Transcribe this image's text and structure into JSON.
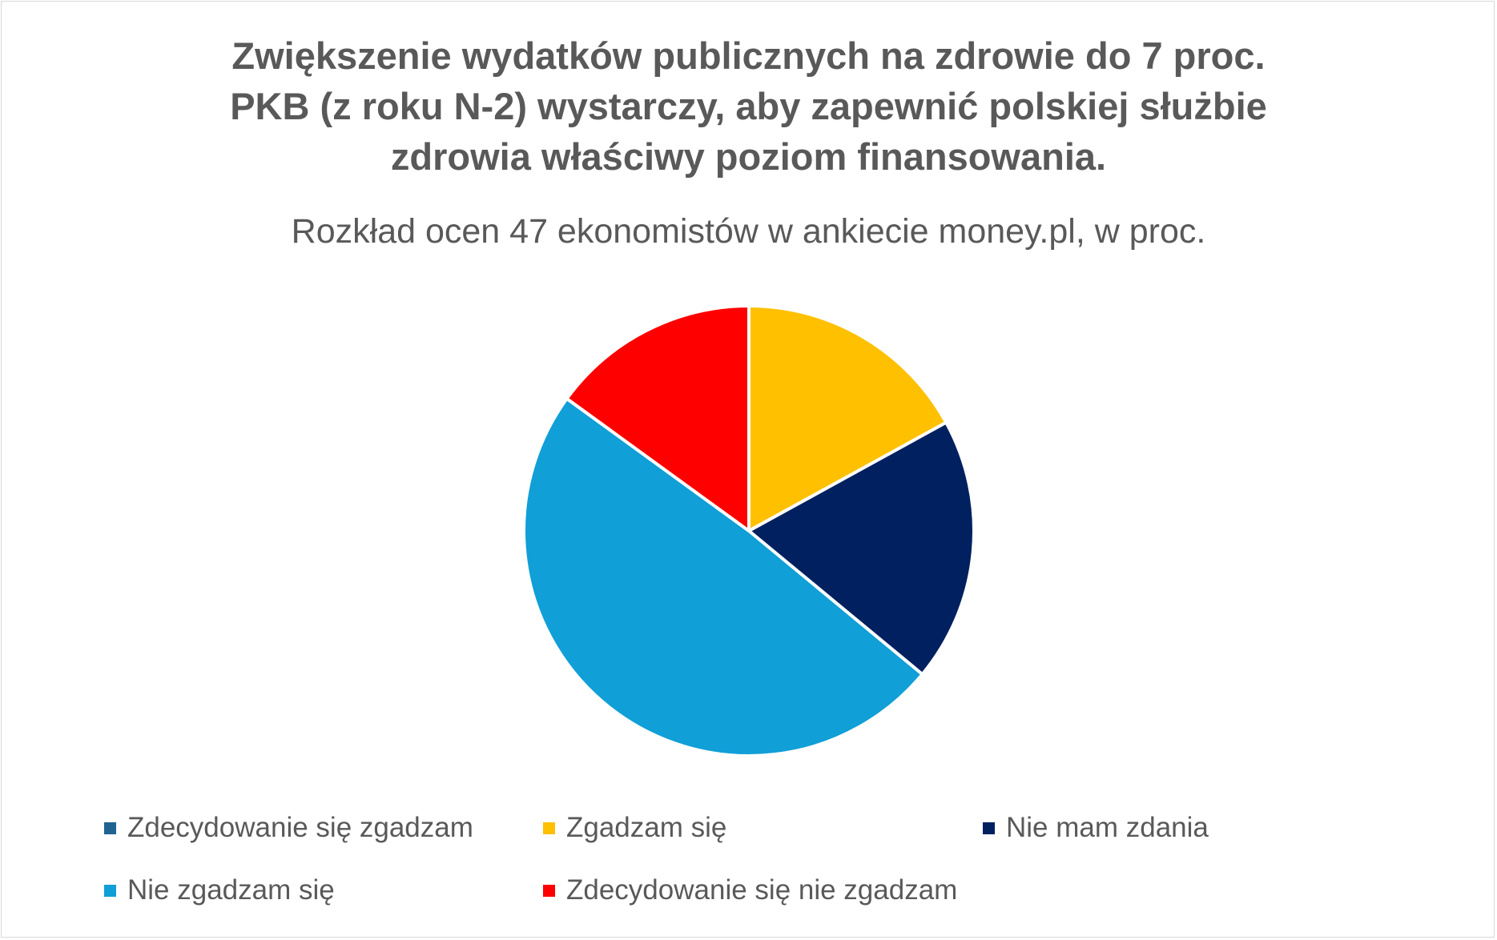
{
  "chart_data": {
    "type": "pie",
    "title_lines": [
      "Zwiększenie wydatków publicznych na zdrowie do 7 proc.",
      "PKB (z roku N-2) wystarczy, aby zapewnić polskiej służbie",
      "zdrowia właściwy poziom finansowania."
    ],
    "subtitle": "Rozkład ocen 47 ekonomistów w ankiecie money.pl, w proc.",
    "categories": [
      "Zdecydowanie się zgadzam",
      "Zgadzam się",
      "Nie mam zdania",
      "Nie zgadzam się",
      "Zdecydowanie się nie zgadzam"
    ],
    "values": [
      0,
      17,
      19,
      49,
      15
    ],
    "colors": [
      "#1f6391",
      "#ffc000",
      "#002060",
      "#109fd7",
      "#ff0000"
    ],
    "legend_position": "bottom",
    "start_angle_deg": 0,
    "direction": "clockwise"
  }
}
